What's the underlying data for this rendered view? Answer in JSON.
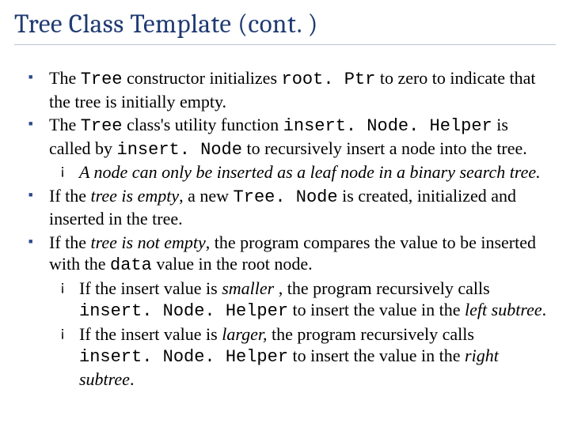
{
  "title": "Tree Class Template (cont. )",
  "colors": {
    "title_color": "#1f3b73",
    "bullet_color": "#2a4a8a",
    "underline_color": "#b8c4d6",
    "text_color": "#000000",
    "background": "#ffffff"
  },
  "typography": {
    "title_fontsize": 33,
    "body_fontsize": 22,
    "title_font": "Cambria, Georgia, serif",
    "body_font": "Georgia, Times New Roman, serif",
    "code_font": "Courier New, monospace"
  },
  "b1": {
    "t0": "The ",
    "c0": "Tree",
    "t1": " constructor initializes ",
    "c1": "root. Ptr",
    "t2": " to zero to indicate that the tree is initially empty."
  },
  "b2": {
    "t0": "The ",
    "c0": "Tree",
    "t1": " class's utility function ",
    "c1": "insert. Node. Helper",
    "t2": " is called by ",
    "c2": "insert. Node",
    "t3": " to recursively insert a node into the tree.",
    "sub1": "A node can only be inserted as a leaf node in a binary search tree."
  },
  "b3": {
    "t0": "If the ",
    "i0": "tree is empty",
    "t1": ", a new ",
    "c0": "Tree. Node",
    "t2": " is created, initialized and inserted in the tree."
  },
  "b4": {
    "t0": "If the ",
    "i0": "tree is not empty",
    "t1": ", the program compares the value to be inserted with the ",
    "c0": "data",
    "t2": " value in the root node.",
    "sub1": {
      "t0": "If the insert value is ",
      "i0": "smaller",
      "t1": " , the program recursively calls ",
      "c0": "insert. Node. Helper",
      "t2": " to insert the value in the ",
      "i1": "left subtree",
      "t3": "."
    },
    "sub2": {
      "t0": "If the insert value is ",
      "i0": "larger,",
      "t1": " the program recursively calls ",
      "c0": "insert. Node. Helper",
      "t2": " to insert the value in the ",
      "i1": "right subtree",
      "t3": "."
    }
  }
}
